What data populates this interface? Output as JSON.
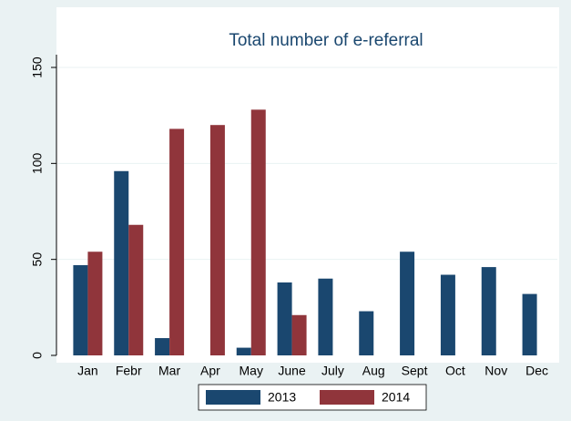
{
  "chart_data": {
    "type": "bar",
    "title": "Total number of e-referral",
    "categories": [
      "Jan",
      "Febr",
      "Mar",
      "Apr",
      "May",
      "June",
      "July",
      "Aug",
      "Sept",
      "Oct",
      "Nov",
      "Dec"
    ],
    "series": [
      {
        "name": "2013",
        "color": "#1a476f",
        "values": [
          47,
          96,
          9,
          null,
          4,
          38,
          40,
          23,
          54,
          42,
          46,
          32
        ]
      },
      {
        "name": "2014",
        "color": "#90353b",
        "values": [
          54,
          68,
          118,
          120,
          128,
          21,
          null,
          null,
          null,
          null,
          null,
          null
        ]
      }
    ],
    "ylim": [
      0,
      150
    ],
    "yticks": [
      0,
      50,
      100,
      150
    ],
    "grid": true,
    "legend": "bottom"
  }
}
